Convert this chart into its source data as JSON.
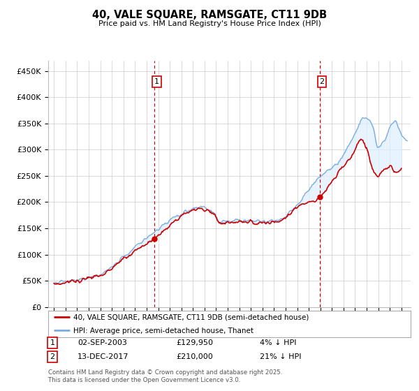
{
  "title": "40, VALE SQUARE, RAMSGATE, CT11 9DB",
  "subtitle": "Price paid vs. HM Land Registry's House Price Index (HPI)",
  "ylabel_ticks": [
    "£0",
    "£50K",
    "£100K",
    "£150K",
    "£200K",
    "£250K",
    "£300K",
    "£350K",
    "£400K",
    "£450K"
  ],
  "ytick_vals": [
    0,
    50000,
    100000,
    150000,
    200000,
    250000,
    300000,
    350000,
    400000,
    450000
  ],
  "ylim": [
    0,
    470000
  ],
  "xlim_start": 1994.5,
  "xlim_end": 2025.8,
  "sale1_x": 2003.67,
  "sale1_y": 129950,
  "sale2_x": 2017.95,
  "sale2_y": 210000,
  "sale1_date": "02-SEP-2003",
  "sale1_price": "£129,950",
  "sale1_hpi": "4% ↓ HPI",
  "sale2_date": "13-DEC-2017",
  "sale2_price": "£210,000",
  "sale2_hpi": "21% ↓ HPI",
  "legend1": "40, VALE SQUARE, RAMSGATE, CT11 9DB (semi-detached house)",
  "legend2": "HPI: Average price, semi-detached house, Thanet",
  "footer": "Contains HM Land Registry data © Crown copyright and database right 2025.\nThis data is licensed under the Open Government Licence v3.0.",
  "line_color_red": "#cc0000",
  "line_color_blue": "#7aade0",
  "fill_color_blue": "#ddeeff",
  "vline_color": "#cc0000",
  "grid_color": "#cccccc",
  "background_color": "#ffffff",
  "ann_box_color": "#cc0000"
}
